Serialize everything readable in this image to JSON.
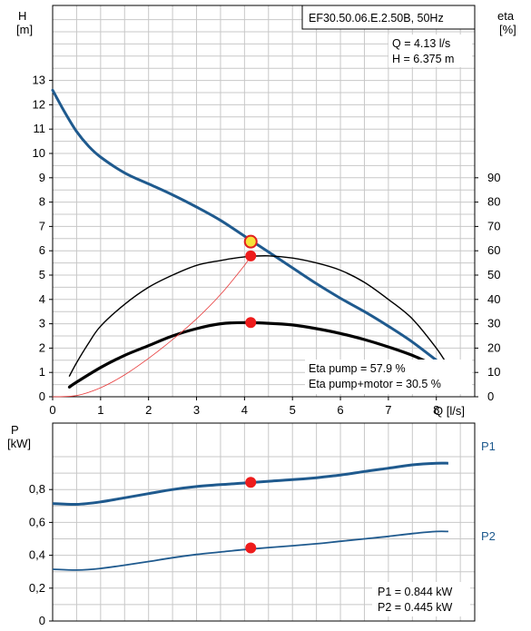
{
  "chart_data": [
    {
      "type": "line",
      "title": "EF30.50.06.E.2.50B, 50Hz",
      "xlabel": "Q [l/s]",
      "ylabel_left": [
        "H",
        "[m]"
      ],
      "ylabel_right": [
        "eta",
        "[%]"
      ],
      "xlim": [
        0,
        8.8
      ],
      "ylim_left": [
        0,
        13
      ],
      "ylim_right": [
        0,
        100
      ],
      "grid": true,
      "x_ticks": [
        "0",
        "1",
        "2",
        "3",
        "4",
        "5",
        "6",
        "7",
        "8"
      ],
      "y_ticks_left": [
        "0",
        "1",
        "2",
        "3",
        "4",
        "5",
        "6",
        "7",
        "8",
        "9",
        "10",
        "11",
        "12",
        "13"
      ],
      "y_ticks_right": [
        "0",
        "10",
        "20",
        "30",
        "40",
        "50",
        "60",
        "70",
        "80",
        "90"
      ],
      "operating_point": {
        "label_q": "Q = 4.13 l/s",
        "label_h": "H = 6.375 m",
        "q": 4.13,
        "h": 6.375
      },
      "efficiency_labels": {
        "pump": "Eta pump = 57.9 %",
        "total": "Eta pump+motor = 30.5 %"
      },
      "series": [
        {
          "id": "head",
          "axis": "left",
          "color": "#1f5a8e",
          "x": [
            0,
            0.25,
            0.5,
            0.75,
            1,
            1.5,
            2,
            2.5,
            3,
            3.5,
            4,
            4.5,
            5,
            5.5,
            6,
            6.5,
            7,
            7.5,
            8
          ],
          "values": [
            12.6,
            11.7,
            10.9,
            10.3,
            9.85,
            9.2,
            8.75,
            8.3,
            7.8,
            7.25,
            6.6,
            5.95,
            5.3,
            4.65,
            4.05,
            3.5,
            2.9,
            2.25,
            1.5
          ]
        },
        {
          "id": "eta_pump",
          "axis": "right",
          "color": "#000000",
          "x": [
            0.35,
            0.5,
            0.75,
            1,
            1.5,
            2,
            2.5,
            3,
            3.5,
            4,
            4.5,
            5,
            5.5,
            6,
            6.5,
            7,
            7.5,
            8,
            8.25
          ],
          "values": [
            8.5,
            14,
            22,
            29,
            38,
            45,
            50,
            54,
            56,
            57.5,
            57.9,
            57,
            55,
            52,
            47,
            40,
            32,
            20,
            12.5
          ]
        },
        {
          "id": "eta_pump_motor",
          "axis": "right",
          "color": "#000000",
          "x": [
            0.35,
            0.5,
            1,
            1.5,
            2,
            2.5,
            3,
            3.5,
            4,
            4.5,
            5,
            5.5,
            6,
            6.5,
            7,
            7.5,
            8
          ],
          "values": [
            4,
            6,
            12,
            17,
            21,
            25,
            28,
            30,
            30.5,
            30.2,
            29.5,
            28,
            26,
            23.5,
            20.5,
            17,
            12.5
          ]
        },
        {
          "id": "system_curve",
          "axis": "left",
          "color": "#e83a3a",
          "x": [
            0,
            0.5,
            1,
            1.5,
            2,
            2.5,
            3,
            3.5,
            4,
            4.13
          ],
          "values": [
            0,
            0.05,
            0.37,
            0.9,
            1.58,
            2.35,
            3.2,
            4.2,
            5.4,
            5.8
          ]
        }
      ],
      "markers": [
        {
          "axis": "left",
          "x": 4.13,
          "value": 6.375,
          "style": "duty-point"
        },
        {
          "axis": "right",
          "x": 4.13,
          "value": 57.9,
          "style": "dot"
        },
        {
          "axis": "right",
          "x": 4.13,
          "value": 30.5,
          "style": "dot"
        }
      ]
    },
    {
      "type": "line",
      "ylabel": [
        "P",
        "[kW]"
      ],
      "xlim": [
        0,
        8.8
      ],
      "ylim": [
        0,
        1.05
      ],
      "grid": true,
      "y_ticks": [
        "0",
        "0,2",
        "0,4",
        "0,6",
        "0,8"
      ],
      "power_labels": {
        "p1": "P1 = 0.844 kW",
        "p2": "P2 = 0.445 kW"
      },
      "series": [
        {
          "name": "P1",
          "color": "#1f5a8e",
          "x": [
            0,
            0.5,
            1,
            1.5,
            2,
            2.5,
            3,
            3.5,
            4,
            4.5,
            5,
            5.5,
            6,
            6.5,
            7,
            7.5,
            8,
            8.25
          ],
          "values": [
            0.715,
            0.71,
            0.725,
            0.75,
            0.775,
            0.8,
            0.818,
            0.83,
            0.84,
            0.85,
            0.86,
            0.872,
            0.888,
            0.91,
            0.93,
            0.95,
            0.96,
            0.96
          ]
        },
        {
          "name": "P2",
          "color": "#1f5a8e",
          "x": [
            0,
            0.5,
            1,
            1.5,
            2,
            2.5,
            3,
            3.5,
            4,
            4.5,
            5,
            5.5,
            6,
            6.5,
            7,
            7.5,
            8,
            8.25
          ],
          "values": [
            0.315,
            0.31,
            0.32,
            0.34,
            0.362,
            0.385,
            0.405,
            0.42,
            0.435,
            0.447,
            0.458,
            0.47,
            0.485,
            0.5,
            0.515,
            0.532,
            0.545,
            0.545
          ]
        }
      ],
      "markers": [
        {
          "x": 4.13,
          "value": 0.844
        },
        {
          "x": 4.13,
          "value": 0.445
        }
      ]
    }
  ]
}
